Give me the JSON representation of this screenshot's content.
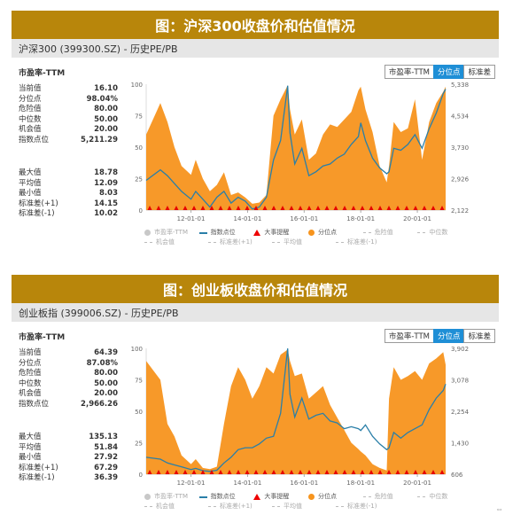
{
  "panels": [
    {
      "banner_title": "图：沪深300收盘价和估值情况",
      "subtitle": "沪深300 (399300.SZ) - 历史PE/PB",
      "metric_title": "市盈率-TTM",
      "tabs": [
        "市盈率-TTM",
        "分位点",
        "标准差"
      ],
      "active_tab": 1,
      "stats_group1": [
        {
          "label": "当前值",
          "value": "16.10"
        },
        {
          "label": "分位点",
          "value": "98.04%"
        },
        {
          "label": "危险值",
          "value": "80.00"
        },
        {
          "label": "中位数",
          "value": "50.00"
        },
        {
          "label": "机会值",
          "value": "20.00"
        },
        {
          "label": "指数点位",
          "value": "5,211.29"
        }
      ],
      "stats_group2": [
        {
          "label": "最大值",
          "value": "18.78"
        },
        {
          "label": "平均值",
          "value": "12.09"
        },
        {
          "label": "最小值",
          "value": "8.03"
        },
        {
          "label": "标准差(+1)",
          "value": "14.15"
        },
        {
          "label": "标准差(-1)",
          "value": "10.02"
        }
      ],
      "legend_row1": [
        "市盈率-TTM",
        "指数点位",
        "大事提醒",
        "分位点",
        "危险值",
        "中位数"
      ],
      "legend_row2": [
        "机会值",
        "标准差(+1)",
        "平均值",
        "标准差(-1)"
      ]
    },
    {
      "banner_title": "图：创业板收盘价和估值情况",
      "subtitle": "创业板指 (399006.SZ) - 历史PE/PB",
      "metric_title": "市盈率-TTM",
      "tabs": [
        "市盈率-TTM",
        "分位点",
        "标准差"
      ],
      "active_tab": 1,
      "stats_group1": [
        {
          "label": "当前值",
          "value": "64.39"
        },
        {
          "label": "分位点",
          "value": "87.08%"
        },
        {
          "label": "危险值",
          "value": "80.00"
        },
        {
          "label": "中位数",
          "value": "50.00"
        },
        {
          "label": "机会值",
          "value": "20.00"
        },
        {
          "label": "指数点位",
          "value": "2,966.26"
        }
      ],
      "stats_group2": [
        {
          "label": "最大值",
          "value": "135.13"
        },
        {
          "label": "平均值",
          "value": "51.84"
        },
        {
          "label": "最小值",
          "value": "27.92"
        },
        {
          "label": "标准差(+1)",
          "value": "67.29"
        },
        {
          "label": "标准差(-1)",
          "value": "36.39"
        }
      ],
      "legend_row1": [
        "市盈率-TTM",
        "指数点位",
        "大事提醒",
        "分位点",
        "危险值",
        "中位数"
      ],
      "legend_row2": [
        "机会值",
        "标准差(+1)",
        "平均值",
        "标准差(-1)"
      ]
    }
  ],
  "colors": {
    "banner": "#b8860b",
    "percentile_fill": "#f7941d",
    "index_line": "#2a7fa8",
    "event_marker": "#e60000",
    "active_tab": "#1f8fd6"
  },
  "chart_data": [
    {
      "type": "area",
      "x": [
        "2010-06",
        "2010-12",
        "2011-03",
        "2011-06",
        "2011-09",
        "2012-01",
        "2012-03",
        "2012-06",
        "2012-09",
        "2012-12",
        "2013-03",
        "2013-06",
        "2013-09",
        "2013-12",
        "2014-03",
        "2014-06",
        "2014-09",
        "2014-12",
        "2015-03",
        "2015-06",
        "2015-07",
        "2015-09",
        "2015-12",
        "2016-03",
        "2016-06",
        "2016-09",
        "2016-12",
        "2017-03",
        "2017-06",
        "2017-09",
        "2017-12",
        "2018-01",
        "2018-03",
        "2018-06",
        "2018-09",
        "2018-12",
        "2019-01",
        "2019-03",
        "2019-06",
        "2019-09",
        "2019-12",
        "2020-03",
        "2020-06",
        "2020-09",
        "2020-12",
        "2021-01"
      ],
      "series": [
        {
          "name": "分位点",
          "axis": "left",
          "values": [
            60,
            85,
            70,
            50,
            35,
            28,
            40,
            25,
            15,
            20,
            30,
            12,
            14,
            10,
            5,
            6,
            12,
            75,
            88,
            99,
            80,
            60,
            72,
            40,
            45,
            60,
            68,
            66,
            72,
            78,
            95,
            98,
            80,
            62,
            35,
            22,
            35,
            70,
            62,
            65,
            88,
            40,
            70,
            85,
            94,
            98
          ]
        },
        {
          "name": "指数点位",
          "axis": "right",
          "values": [
            2880,
            3150,
            3000,
            2800,
            2600,
            2400,
            2600,
            2400,
            2200,
            2450,
            2600,
            2300,
            2450,
            2350,
            2150,
            2200,
            2450,
            3400,
            3900,
            5300,
            4100,
            3300,
            3700,
            3000,
            3100,
            3250,
            3300,
            3450,
            3550,
            3800,
            4000,
            4350,
            3900,
            3450,
            3200,
            3050,
            3100,
            3700,
            3650,
            3800,
            4050,
            3700,
            4200,
            4600,
            5100,
            5211
          ]
        }
      ],
      "xticks": [
        "12-01-01",
        "14-01-01",
        "16-01-01",
        "18-01-01",
        "20-01-01"
      ],
      "y_left_ticks": [
        "0",
        "25",
        "50",
        "75",
        "100"
      ],
      "y_right_ticks": [
        "2,122",
        "2,926",
        "3,730",
        "4,534",
        "5,338"
      ],
      "ylim_left": [
        0,
        100
      ],
      "ylim_right": [
        2122,
        5338
      ],
      "legend_position": "bottom"
    },
    {
      "type": "area",
      "x": [
        "2010-06",
        "2010-12",
        "2011-03",
        "2011-06",
        "2011-09",
        "2012-01",
        "2012-03",
        "2012-06",
        "2012-09",
        "2012-12",
        "2013-03",
        "2013-06",
        "2013-09",
        "2013-12",
        "2014-03",
        "2014-06",
        "2014-09",
        "2014-12",
        "2015-03",
        "2015-06",
        "2015-07",
        "2015-09",
        "2015-12",
        "2016-03",
        "2016-06",
        "2016-09",
        "2016-12",
        "2017-03",
        "2017-06",
        "2017-09",
        "2017-12",
        "2018-01",
        "2018-03",
        "2018-06",
        "2018-09",
        "2018-12",
        "2019-01",
        "2019-03",
        "2019-06",
        "2019-09",
        "2019-12",
        "2020-03",
        "2020-06",
        "2020-09",
        "2020-12",
        "2021-01"
      ],
      "series": [
        {
          "name": "分位点",
          "axis": "left",
          "values": [
            90,
            75,
            40,
            30,
            15,
            8,
            12,
            5,
            4,
            6,
            40,
            70,
            85,
            75,
            60,
            70,
            85,
            80,
            95,
            99,
            90,
            78,
            80,
            60,
            65,
            70,
            55,
            45,
            35,
            25,
            20,
            18,
            15,
            8,
            5,
            3,
            60,
            85,
            75,
            78,
            82,
            75,
            88,
            92,
            97,
            87
          ]
        },
        {
          "name": "指数点位",
          "axis": "right",
          "values": [
            1050,
            1000,
            900,
            850,
            800,
            730,
            760,
            700,
            680,
            710,
            900,
            1050,
            1250,
            1300,
            1300,
            1400,
            1550,
            1600,
            2200,
            3900,
            2700,
            2100,
            2600,
            2050,
            2150,
            2200,
            2000,
            1950,
            1800,
            1850,
            1800,
            1750,
            1900,
            1600,
            1400,
            1250,
            1300,
            1700,
            1550,
            1700,
            1800,
            1900,
            2300,
            2600,
            2800,
            2966
          ]
        }
      ],
      "xticks": [
        "12-01-01",
        "14-01-01",
        "16-01-01",
        "18-01-01",
        "20-01-01"
      ],
      "y_left_ticks": [
        "0",
        "25",
        "50",
        "75",
        "100"
      ],
      "y_right_ticks": [
        "606",
        "1,430",
        "2,254",
        "3,078",
        "3,902"
      ],
      "ylim_left": [
        0,
        100
      ],
      "ylim_right": [
        606,
        3902
      ],
      "legend_position": "bottom"
    }
  ]
}
